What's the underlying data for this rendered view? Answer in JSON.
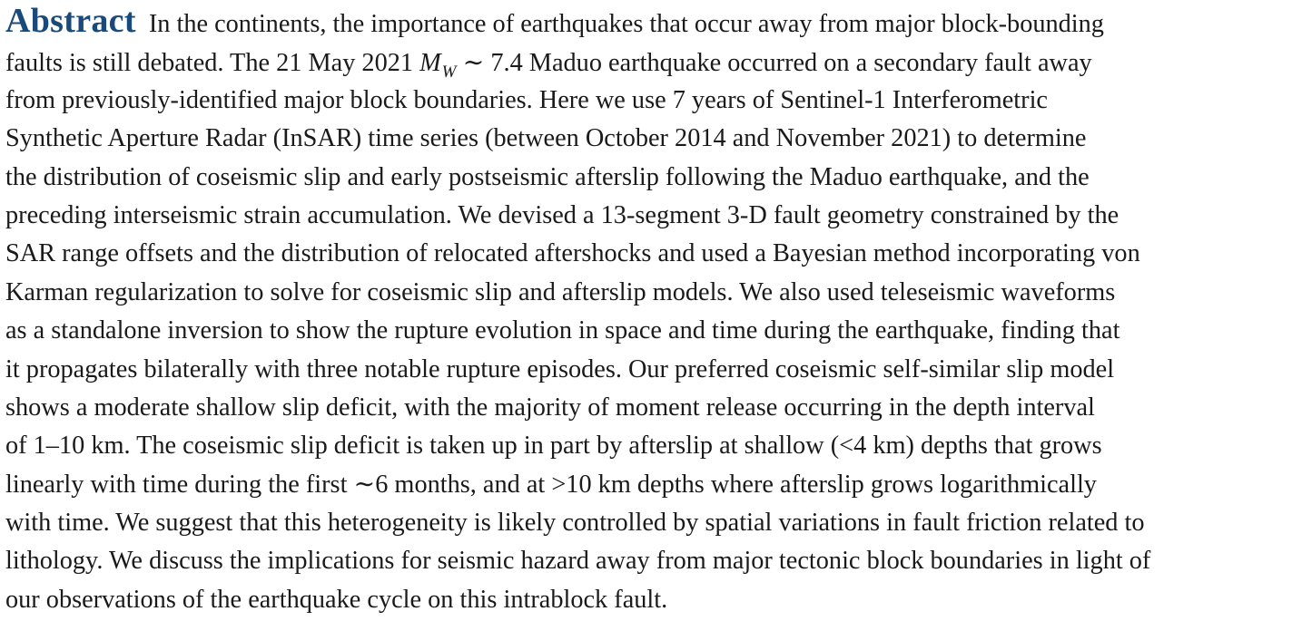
{
  "heading": "Abstract",
  "line1": "In the continents, the importance of earthquakes that occur away from major block-bounding",
  "line2_before": "faults is still debated. The 21 May 2021 ",
  "mag_symbol": "M",
  "mag_subscript": "W",
  "line2_after": " ∼ 7.4 Maduo earthquake occurred on a secondary fault away",
  "lines": [
    "from previously-identified major block boundaries. Here we use 7 years of Sentinel-1 Interferometric",
    "Synthetic Aperture Radar (InSAR) time series (between October 2014 and November 2021) to determine",
    "the distribution of coseismic slip and early postseismic afterslip following the Maduo earthquake, and the",
    "preceding interseismic strain accumulation. We devised a 13-segment 3-D fault geometry constrained by the",
    "SAR range offsets and the distribution of relocated aftershocks and used a Bayesian method incorporating von",
    "Karman regularization to solve for coseismic slip and afterslip models. We also used teleseismic waveforms",
    "as a standalone inversion to show the rupture evolution in space and time during the earthquake, finding that",
    "it propagates bilaterally with three notable rupture episodes. Our preferred coseismic self-similar slip model",
    "shows a moderate shallow slip deficit, with the majority of moment release occurring in the depth interval",
    "of 1–10 km. The coseismic slip deficit is taken up in part by afterslip at shallow (<4 km) depths that grows",
    "linearly with time during the first ∼6 months, and at >10 km depths where afterslip grows logarithmically",
    "with time. We suggest that this heterogeneity is likely controlled by spatial variations in fault friction related to",
    "lithology. We discuss the implications for seismic hazard away from major tectonic block boundaries in light of",
    "our observations of the earthquake cycle on this intrablock fault."
  ]
}
